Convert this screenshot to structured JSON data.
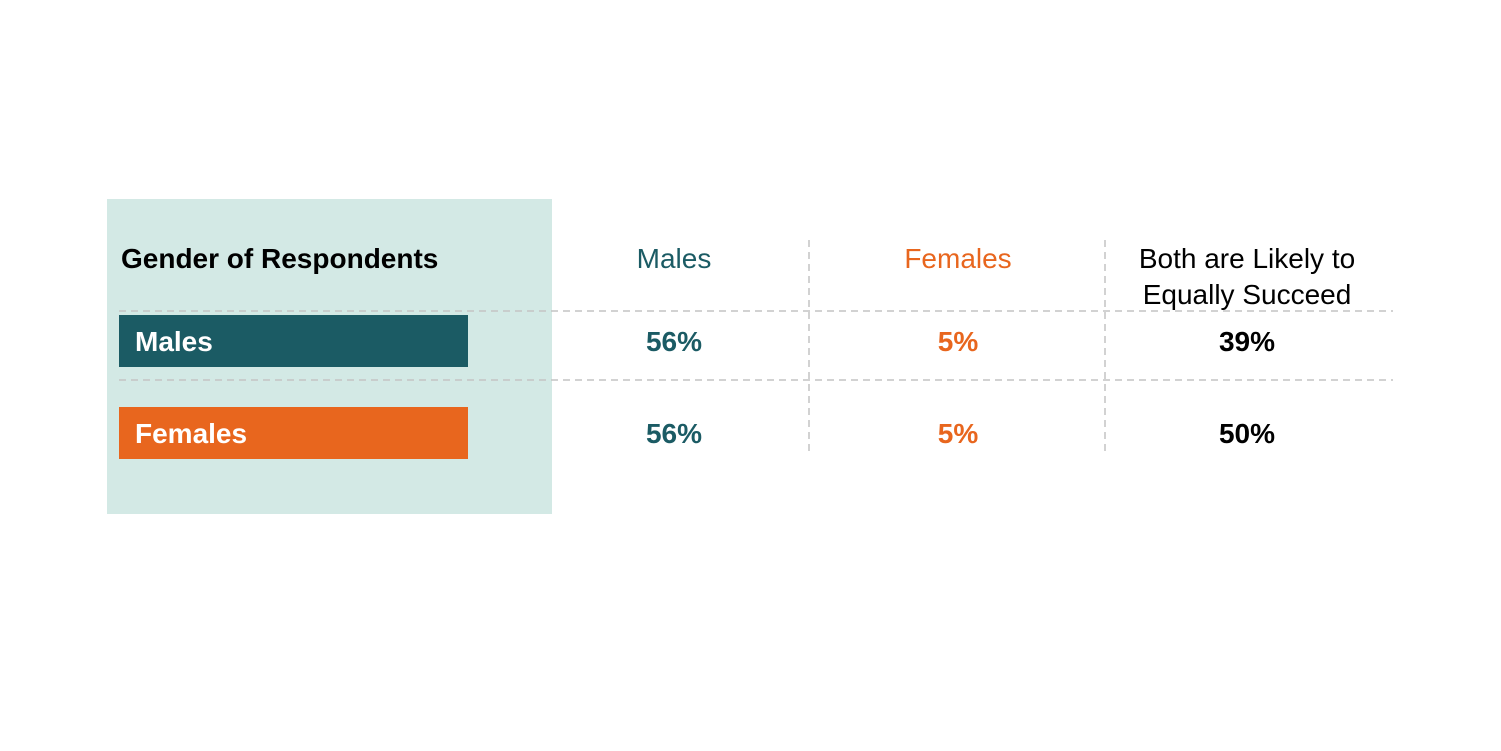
{
  "colors": {
    "males": "#1b5b64",
    "females": "#e8661e",
    "both": "#000000",
    "panel_bg": "#d3e9e5",
    "grid": "#c4c4c4",
    "row_label_text": "#ffffff"
  },
  "chart_data": {
    "type": "table",
    "title": "Gender of Respondents",
    "columns": [
      {
        "label_lines": [
          "Males"
        ],
        "color_key": "males"
      },
      {
        "label_lines": [
          "Females"
        ],
        "color_key": "females"
      },
      {
        "label_lines": [
          "Both are Likely to",
          "Equally Succeed"
        ],
        "color_key": "both"
      }
    ],
    "rows": [
      {
        "label": "Males",
        "color_key": "males",
        "values": [
          "56%",
          "5%",
          "39%"
        ]
      },
      {
        "label": "Females",
        "color_key": "females",
        "values": [
          "56%",
          "5%",
          "50%"
        ]
      }
    ]
  }
}
